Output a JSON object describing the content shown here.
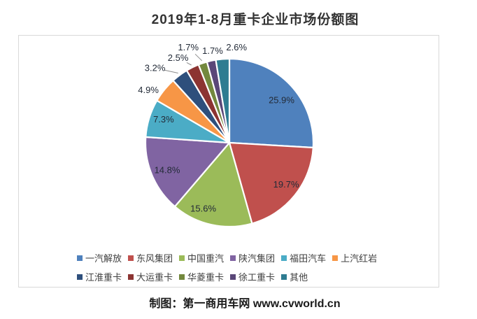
{
  "title": "2019年1-8月重卡企业市场份额图",
  "footer": {
    "text": "制图：第一商用车网 www.cvworld.cn"
  },
  "chart_data": {
    "type": "pie",
    "title": "2019年1-8月重卡企业市场份额图",
    "unit": "%",
    "start_angle": "top",
    "direction": "clockwise",
    "legend_position": "bottom",
    "labels_format": "percent",
    "series": [
      {
        "name": "一汽解放",
        "value": 25.9,
        "color": "#4F81BD"
      },
      {
        "name": "东风集团",
        "value": 19.7,
        "color": "#C0504D"
      },
      {
        "name": "中国重汽",
        "value": 15.6,
        "color": "#9BBB59"
      },
      {
        "name": "陕汽集团",
        "value": 14.8,
        "color": "#8064A2"
      },
      {
        "name": "福田汽车",
        "value": 7.3,
        "color": "#4BACC6"
      },
      {
        "name": "上汽红岩",
        "value": 4.9,
        "color": "#F79646"
      },
      {
        "name": "江淮重卡",
        "value": 3.2,
        "color": "#2E4F7C"
      },
      {
        "name": "大运重卡",
        "value": 2.5,
        "color": "#8C3432"
      },
      {
        "name": "华菱重卡",
        "value": 1.7,
        "color": "#73883E"
      },
      {
        "name": "徐工重卡",
        "value": 1.7,
        "color": "#5A4778"
      },
      {
        "name": "其他",
        "value": 2.6,
        "color": "#2E7C91"
      }
    ]
  }
}
